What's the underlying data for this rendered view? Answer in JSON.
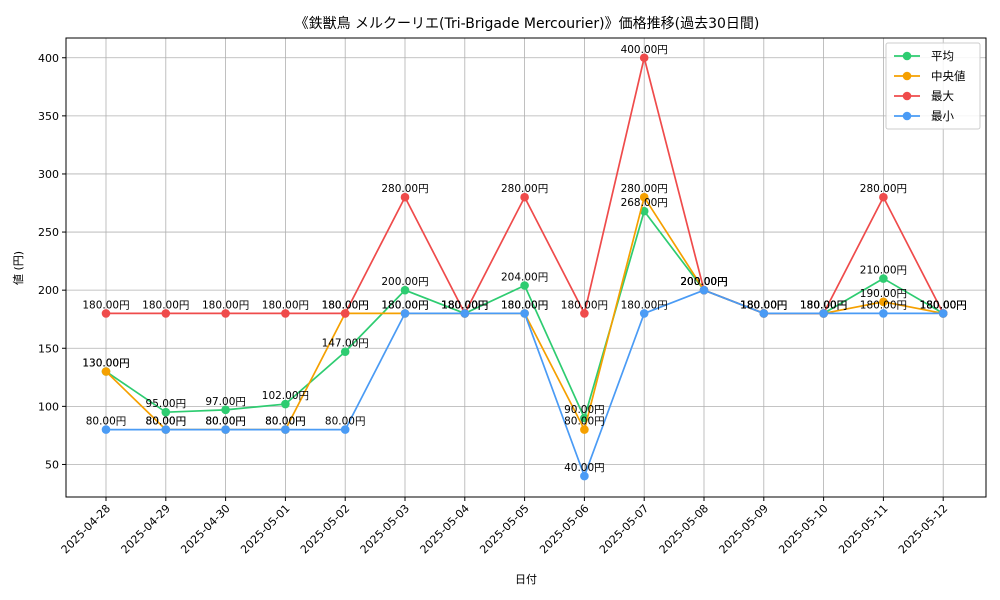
{
  "chart_data": {
    "type": "line",
    "title": "《鉄獣鳥 メルクーリエ(Tri-Brigade Mercourier)》価格推移(過去30日間)",
    "xlabel": "日付",
    "ylabel": "値 (円)",
    "categories": [
      "2025-04-28",
      "2025-04-29",
      "2025-04-30",
      "2025-05-01",
      "2025-05-02",
      "2025-05-03",
      "2025-05-04",
      "2025-05-05",
      "2025-05-06",
      "2025-05-07",
      "2025-05-08",
      "2025-05-09",
      "2025-05-10",
      "2025-05-11",
      "2025-05-12"
    ],
    "ylim": [
      22,
      417
    ],
    "yticks": [
      50,
      100,
      150,
      200,
      250,
      300,
      350,
      400
    ],
    "grid": true,
    "legend_position": "top-right",
    "series": [
      {
        "name": "平均",
        "color": "#2ecc71",
        "values": [
          130,
          95,
          97,
          102,
          147,
          200,
          180,
          204,
          90,
          268,
          200,
          180,
          180,
          210,
          180
        ],
        "labels": [
          "130.00円",
          "95.00円",
          "97.00円",
          "102.00円",
          "147.00円",
          "200.00円",
          "180.00円",
          "204.00円",
          "90.00円",
          "268.00円",
          "200.00円",
          "180.00円",
          "180.00円",
          "210.00円",
          "180.00円"
        ]
      },
      {
        "name": "中央値",
        "color": "#f5a000",
        "values": [
          130,
          80,
          80,
          80,
          180,
          180,
          180,
          180,
          80,
          280,
          200,
          180,
          180,
          190,
          180
        ],
        "labels": [
          "130.00円",
          "80.00円",
          "80.00円",
          "80.00円",
          "180.00円",
          "180.00円",
          "180.00円",
          "180.00円",
          "80.00円",
          "280.00円",
          "200.00円",
          "180.00円",
          "180.00円",
          "190.00円",
          "180.00円"
        ]
      },
      {
        "name": "最大",
        "color": "#ef4b4b",
        "values": [
          180,
          180,
          180,
          180,
          180,
          280,
          180,
          280,
          180,
          400,
          200,
          180,
          180,
          280,
          180
        ],
        "labels": [
          "180.00円",
          "180.00円",
          "180.00円",
          "180.00円",
          "180.00円",
          "280.00円",
          "180.00円",
          "280.00円",
          "180.00円",
          "400.00円",
          "200.00円",
          "180.00円",
          "180.00円",
          "280.00円",
          "180.00円"
        ]
      },
      {
        "name": "最小",
        "color": "#4a9bf5",
        "values": [
          80,
          80,
          80,
          80,
          80,
          180,
          180,
          180,
          40,
          180,
          200,
          180,
          180,
          180,
          180
        ],
        "labels": [
          "80.00円",
          "80.00円",
          "80.00円",
          "80.00円",
          "80.00円",
          "180.00円",
          "180.00円",
          "180.00円",
          "40.00円",
          "180.00円",
          "200.00円",
          "180.00円",
          "180.00円",
          "180.00円",
          "180.00円"
        ]
      }
    ]
  }
}
